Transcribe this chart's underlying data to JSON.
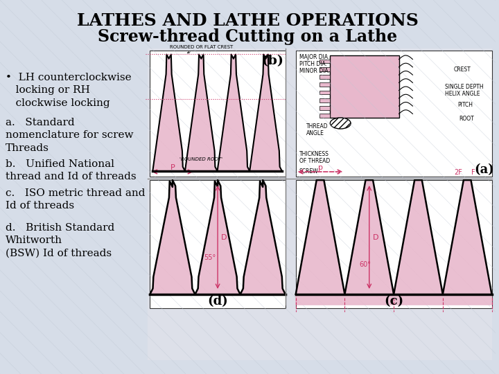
{
  "title_line1": "LATHES AND LATHE OPERATIONS",
  "title_line2": "Screw-thread Cutting on a Lathe",
  "bg_color": "#d6dde8",
  "title_color": "#000000",
  "bullet_text": "•  LH counterclockwise\n   locking or RH\n   clockwise locking",
  "item_a": "a.   Standard\nnomenclature for screw\nThreads",
  "item_b": "b.   Unified National\nthread and Id of threads",
  "item_c": "c.   ISO metric thread and\nId of threads",
  "item_d": "d.   British Standard\nWhitworth\n(BSW) Id of threads",
  "label_a": "(a)",
  "label_b": "(b)",
  "label_c": "(c)",
  "label_d": "(d)",
  "image_area_color": "#e8ccd8",
  "text_font_size": 11,
  "title_font_size": 18
}
